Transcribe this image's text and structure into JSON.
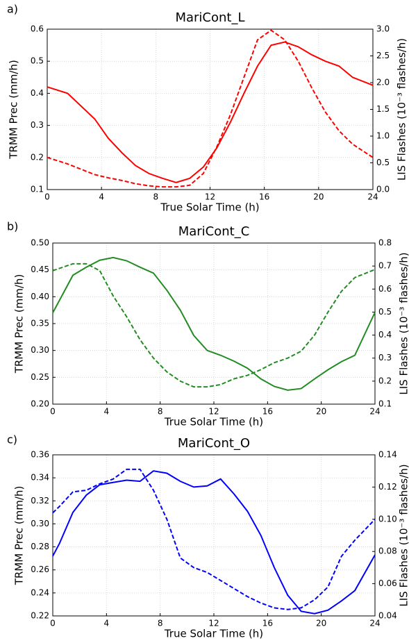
{
  "chart_data": [
    {
      "type": "line",
      "panel_label": "a)",
      "title": "MariCont_L",
      "x_label": "True Solar Time (h)",
      "y_label": "TRMM Prec (mm/h)",
      "y2_label": "LIS Flashes (10⁻³ flashes/h)",
      "grid": true,
      "x": [
        0,
        1.5,
        2.5,
        3.5,
        4.5,
        5.5,
        6.5,
        7.5,
        8.5,
        9.5,
        10.5,
        11.5,
        12.5,
        13.5,
        14.5,
        15.5,
        16.5,
        17.5,
        18.5,
        19.5,
        20.5,
        21.5,
        22.5,
        24
      ],
      "xlim": [
        0,
        24
      ],
      "xticks": [
        0,
        4,
        8,
        12,
        16,
        20,
        24
      ],
      "ylim": [
        0.1,
        0.6
      ],
      "yticks": [
        0.1,
        0.2,
        0.3,
        0.4,
        0.5,
        0.6
      ],
      "y2lim": [
        0,
        3
      ],
      "y2ticks": [
        {
          "value": 0,
          "label": "0.0"
        },
        {
          "value": 0.5,
          "label": "0.5"
        },
        {
          "value": 1,
          "label": "1.0"
        },
        {
          "value": 1.5,
          "label": "1.5"
        },
        {
          "value": 2,
          "label": "2.0"
        },
        {
          "value": 2.5,
          "label": "2.5"
        },
        {
          "value": 3,
          "label": "3.0"
        }
      ],
      "series": [
        {
          "color": "#ff0000",
          "dash": false,
          "values": [
            0.42,
            0.4,
            0.36,
            0.32,
            0.26,
            0.215,
            0.175,
            0.15,
            0.135,
            0.122,
            0.135,
            0.17,
            0.23,
            0.31,
            0.4,
            0.485,
            0.55,
            0.56,
            0.545,
            0.52,
            0.5,
            0.485,
            0.45,
            0.425
          ]
        },
        {
          "color": "#ff0000",
          "dash": true,
          "axis": "y2",
          "values": [
            0.6,
            0.48,
            0.38,
            0.28,
            0.22,
            0.17,
            0.11,
            0.07,
            0.05,
            0.05,
            0.08,
            0.3,
            0.8,
            1.4,
            2.1,
            2.8,
            2.98,
            2.8,
            2.4,
            1.9,
            1.45,
            1.1,
            0.85,
            0.6
          ]
        }
      ]
    },
    {
      "type": "line",
      "panel_label": "b)",
      "title": "MariCont_C",
      "x_label": "True Solar Time (h)",
      "y_label": "TRMM Prec (mm/h)",
      "y2_label": "LIS Flashes (10⁻³ flashes/h)",
      "grid": true,
      "x": [
        0,
        1.5,
        2.5,
        3.5,
        4.5,
        5.5,
        6.5,
        7.5,
        8.5,
        9.5,
        10.5,
        11.5,
        12.5,
        13.5,
        14.5,
        15.5,
        16.5,
        17.5,
        18.5,
        19.5,
        20.5,
        21.5,
        22.5,
        24
      ],
      "xlim": [
        0,
        24
      ],
      "xticks": [
        0,
        4,
        8,
        12,
        16,
        20,
        24
      ],
      "ylim": [
        0.2,
        0.5
      ],
      "yticks": [
        {
          "value": 0.2,
          "label": "0.20"
        },
        {
          "value": 0.25,
          "label": "0.25"
        },
        {
          "value": 0.3,
          "label": "0.30"
        },
        {
          "value": 0.35,
          "label": "0.35"
        },
        {
          "value": 0.4,
          "label": "0.40"
        },
        {
          "value": 0.45,
          "label": "0.45"
        },
        {
          "value": 0.5,
          "label": "0.50"
        }
      ],
      "y2lim": [
        0.1,
        0.8
      ],
      "y2ticks": [
        0.1,
        0.2,
        0.3,
        0.4,
        0.5,
        0.6,
        0.7,
        0.8
      ],
      "series": [
        {
          "color": "#228b22",
          "dash": false,
          "values": [
            0.37,
            0.44,
            0.455,
            0.468,
            0.473,
            0.467,
            0.455,
            0.444,
            0.412,
            0.375,
            0.328,
            0.3,
            0.291,
            0.28,
            0.267,
            0.247,
            0.233,
            0.226,
            0.229,
            0.247,
            0.264,
            0.279,
            0.291,
            0.371
          ]
        },
        {
          "color": "#228b22",
          "dash": true,
          "axis": "y2",
          "values": [
            0.68,
            0.71,
            0.71,
            0.68,
            0.57,
            0.48,
            0.38,
            0.3,
            0.24,
            0.2,
            0.175,
            0.175,
            0.185,
            0.21,
            0.225,
            0.25,
            0.28,
            0.3,
            0.33,
            0.4,
            0.5,
            0.59,
            0.65,
            0.685
          ]
        }
      ]
    },
    {
      "type": "line",
      "panel_label": "c)",
      "title": "MariCont_O",
      "x_label": "True Solar Time (h)",
      "y_label": "TRMM Prec (mm/h)",
      "y2_label": "LIS Flashes (10⁻³ flashes/h)",
      "grid": true,
      "x": [
        0,
        0.5,
        1.5,
        2.5,
        3.5,
        4.5,
        5.5,
        6.5,
        7.5,
        8.5,
        9.5,
        10.5,
        11.5,
        12.5,
        13.5,
        14.5,
        15.5,
        16.5,
        17.5,
        18.5,
        19.5,
        20.5,
        21.5,
        22.5,
        24
      ],
      "xlim": [
        0,
        24
      ],
      "xticks": [
        0,
        4,
        8,
        12,
        16,
        20,
        24
      ],
      "ylim": [
        0.22,
        0.36
      ],
      "yticks": [
        0.22,
        0.24,
        0.26,
        0.28,
        {
          "value": 0.3,
          "label": "0.30"
        },
        0.32,
        0.34,
        0.36
      ],
      "y2lim": [
        0.04,
        0.14
      ],
      "y2ticks": [
        0.04,
        0.06,
        0.08,
        {
          "value": 0.1,
          "label": "0.10"
        },
        0.12,
        0.14
      ],
      "series": [
        {
          "color": "#0000ff",
          "dash": false,
          "values": [
            0.272,
            0.283,
            0.31,
            0.325,
            0.334,
            0.336,
            0.338,
            0.337,
            0.346,
            0.344,
            0.337,
            0.332,
            0.333,
            0.339,
            0.326,
            0.311,
            0.29,
            0.262,
            0.238,
            0.224,
            0.222,
            0.225,
            0.233,
            0.242,
            0.273
          ]
        },
        {
          "color": "#0000ff",
          "dash": true,
          "axis": "y2",
          "values": [
            0.104,
            0.108,
            0.117,
            0.118,
            0.122,
            0.125,
            0.131,
            0.131,
            0.118,
            0.1,
            0.076,
            0.07,
            0.067,
            0.062,
            0.057,
            0.052,
            0.048,
            0.045,
            0.044,
            0.045,
            0.05,
            0.058,
            0.077,
            0.087,
            0.1
          ]
        }
      ]
    }
  ]
}
